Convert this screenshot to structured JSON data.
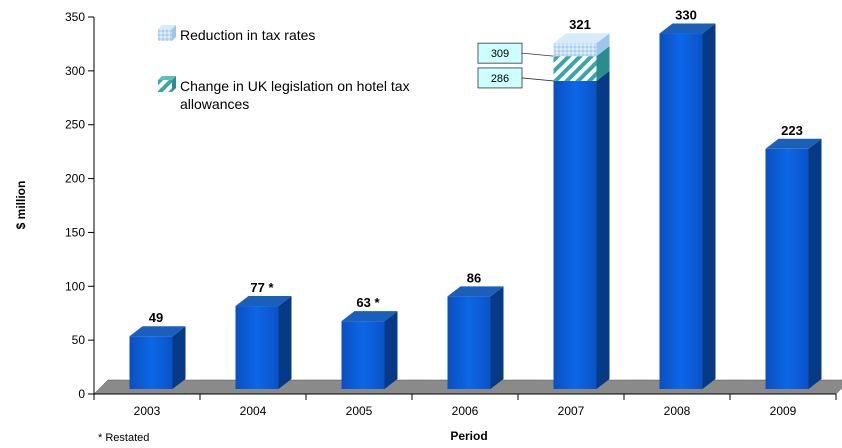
{
  "chart_data": {
    "type": "bar",
    "categories": [
      "2003",
      "2004",
      "2005",
      "2006",
      "2007",
      "2008",
      "2009"
    ],
    "values": [
      49,
      77,
      63,
      86,
      321,
      330,
      223
    ],
    "value_labels": [
      "49",
      "77 *",
      "63 *",
      "86",
      "321",
      "330",
      "223"
    ],
    "stack_2007": {
      "base": 286,
      "after_uk_legislation": 309,
      "total": 321
    },
    "xlabel": "Period",
    "ylabel": "$ million",
    "ylim": [
      0,
      350
    ],
    "yticks": [
      "0",
      "50",
      "100",
      "150",
      "200",
      "250",
      "300",
      "350"
    ],
    "legend": [
      {
        "label": "Reduction in tax rates",
        "icon": "dotted-light-blue-swatch"
      },
      {
        "label_line1": "Change in UK legislation on hotel tax",
        "label_line2": "allowances",
        "icon": "striped-teal-swatch"
      }
    ],
    "callouts": [
      "309",
      "286"
    ],
    "footnote": "* Restated",
    "grid": false,
    "legend_placement": "top-left",
    "colors": {
      "bar_front": "#0a5ed8",
      "bar_side": "#073a85",
      "bar_top": "#1a5fb9",
      "hatch_teal": "#3aa6a6",
      "dotted_light": "#b8d8f4",
      "floor": "#808080",
      "callout_fill": "#ccffff"
    }
  }
}
